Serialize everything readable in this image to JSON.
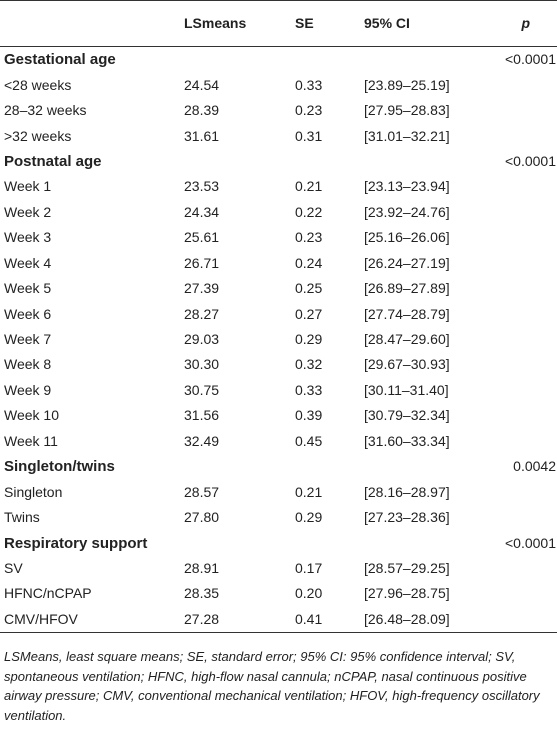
{
  "headers": [
    "",
    "LSmeans",
    "SE",
    "95% CI",
    "p"
  ],
  "groups": [
    {
      "label": "Gestational age",
      "p": "<0.0001",
      "rows": [
        {
          "label": "<28 weeks",
          "lsmeans": "24.54",
          "se": "0.33",
          "ci": "[23.89–25.19]"
        },
        {
          "label": "28–32 weeks",
          "lsmeans": "28.39",
          "se": "0.23",
          "ci": "[27.95–28.83]"
        },
        {
          "label": ">32 weeks",
          "lsmeans": "31.61",
          "se": "0.31",
          "ci": "[31.01–32.21]"
        }
      ]
    },
    {
      "label": "Postnatal age",
      "p": "<0.0001",
      "rows": [
        {
          "label": "Week 1",
          "lsmeans": "23.53",
          "se": "0.21",
          "ci": "[23.13–23.94]"
        },
        {
          "label": "Week 2",
          "lsmeans": "24.34",
          "se": "0.22",
          "ci": "[23.92–24.76]"
        },
        {
          "label": "Week 3",
          "lsmeans": "25.61",
          "se": "0.23",
          "ci": "[25.16–26.06]"
        },
        {
          "label": "Week 4",
          "lsmeans": "26.71",
          "se": "0.24",
          "ci": "[26.24–27.19]"
        },
        {
          "label": "Week 5",
          "lsmeans": "27.39",
          "se": "0.25",
          "ci": "[26.89–27.89]"
        },
        {
          "label": "Week 6",
          "lsmeans": "28.27",
          "se": "0.27",
          "ci": "[27.74–28.79]"
        },
        {
          "label": "Week 7",
          "lsmeans": "29.03",
          "se": "0.29",
          "ci": "[28.47–29.60]"
        },
        {
          "label": "Week 8",
          "lsmeans": "30.30",
          "se": "0.32",
          "ci": "[29.67–30.93]"
        },
        {
          "label": "Week 9",
          "lsmeans": "30.75",
          "se": "0.33",
          "ci": "[30.11–31.40]"
        },
        {
          "label": "Week 10",
          "lsmeans": "31.56",
          "se": "0.39",
          "ci": "[30.79–32.34]"
        },
        {
          "label": "Week 11",
          "lsmeans": "32.49",
          "se": "0.45",
          "ci": "[31.60–33.34]"
        }
      ]
    },
    {
      "label": "Singleton/twins",
      "p": "0.0042",
      "rows": [
        {
          "label": "Singleton",
          "lsmeans": "28.57",
          "se": "0.21",
          "ci": "[28.16–28.97]"
        },
        {
          "label": "Twins",
          "lsmeans": "27.80",
          "se": "0.29",
          "ci": "[27.23–28.36]"
        }
      ]
    },
    {
      "label": "Respiratory support",
      "p": "<0.0001",
      "rows": [
        {
          "label": "SV",
          "lsmeans": "28.91",
          "se": "0.17",
          "ci": "[28.57–29.25]"
        },
        {
          "label": "HFNC/nCPAP",
          "lsmeans": "28.35",
          "se": "0.20",
          "ci": "[27.96–28.75]"
        },
        {
          "label": "CMV/HFOV",
          "lsmeans": "27.28",
          "se": "0.41",
          "ci": "[26.48–28.09]"
        }
      ]
    }
  ],
  "footnote": "LSMeans, least square means; SE, standard error; 95% CI: 95% confidence interval; SV, spontaneous ventilation; HFNC, high-flow nasal cannula; nCPAP, nasal continuous positive airway pressure; CMV, conventional mechanical ventilation; HFOV, high-frequency oscillatory ventilation."
}
